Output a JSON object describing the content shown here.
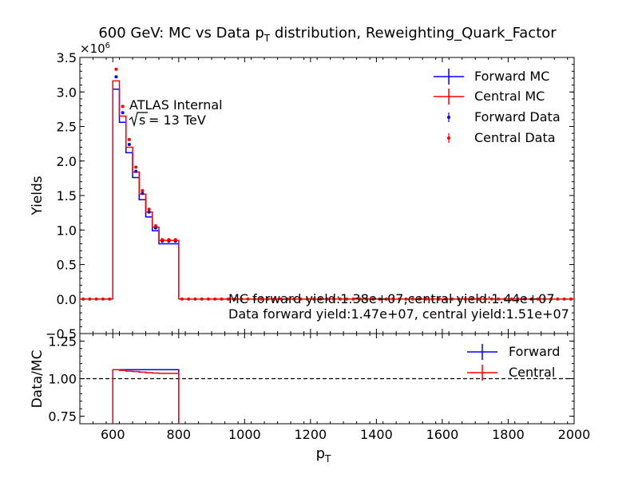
{
  "chart_data": [
    {
      "type": "line",
      "panel": "main",
      "title_main": "600 GeV: MC vs Data p",
      "title_sub": "T",
      "title_rest": " distribution, Reweighting_Quark_Factor",
      "ylabel": "Yields",
      "scale_label": "×10",
      "scale_exp": "6",
      "xlim": [
        500,
        2000
      ],
      "ylim": [
        -0.5,
        3.5
      ],
      "y_ticks": [
        -0.5,
        0.0,
        0.5,
        1.0,
        1.5,
        2.0,
        2.5,
        3.0,
        3.5
      ],
      "y_tick_labels": [
        "−0.5",
        "0.0",
        "0.5",
        "1.0",
        "1.5",
        "2.0",
        "2.5",
        "3.0",
        "3.5"
      ],
      "annotations": {
        "atlas": "ATLAS Internal",
        "sqrt_s": "s",
        "energy": " =  13 TeV",
        "mc_yield": "MC forward yield:1.38e+07,central yield:1.44e+07",
        "data_yield": "Data forward yield:1.47e+07, central yield:1.51e+07"
      },
      "legend_placement": "top-right",
      "bin_edges": [
        500,
        520,
        540,
        560,
        580,
        600,
        620,
        640,
        660,
        680,
        700,
        720,
        740,
        760,
        780,
        800,
        820,
        840,
        860,
        880,
        900,
        920,
        940,
        960,
        980,
        1000,
        1020,
        1040,
        1060,
        1080,
        1100,
        1120,
        1140,
        1160,
        1180,
        1200,
        1220,
        1240,
        1260,
        1280,
        1300,
        1320,
        1340,
        1360,
        1380,
        1400,
        1420,
        1440,
        1460,
        1480,
        1500,
        1520,
        1540,
        1560,
        1580,
        1600,
        1620,
        1640,
        1660,
        1680,
        1700,
        1720,
        1740,
        1760,
        1780,
        1800,
        1820,
        1840,
        1860,
        1880,
        1900,
        1920,
        1940,
        1960,
        1980,
        2000
      ],
      "nonzero_bins": {
        "x_centers": [
          610,
          630,
          650,
          670,
          690,
          710,
          730,
          750,
          770,
          790
        ],
        "forward_mc": [
          3.04,
          2.56,
          2.12,
          1.76,
          1.44,
          1.19,
          0.99,
          0.8,
          0.0,
          0.0
        ],
        "central_mc": [
          3.16,
          2.65,
          2.2,
          1.84,
          1.52,
          1.26,
          1.04,
          0.85,
          0.0,
          0.0
        ]
      },
      "hist_edges_used": [
        600,
        620,
        640,
        660,
        680,
        700,
        720,
        740,
        760,
        780,
        800
      ],
      "forward_mc_steps": [
        3.04,
        2.56,
        2.12,
        1.76,
        1.44,
        1.19,
        0.99,
        0.8,
        0.8,
        0.8
      ],
      "central_mc_steps": [
        3.16,
        2.65,
        2.2,
        1.84,
        1.52,
        1.26,
        1.04,
        0.85,
        0.85,
        0.85
      ],
      "data_points_x": [
        610,
        630,
        650,
        670,
        690,
        710,
        730,
        750,
        770,
        790
      ],
      "forward_data": [
        3.22,
        2.7,
        2.24,
        1.85,
        1.53,
        1.26,
        1.03,
        0.84,
        0.84,
        0.84
      ],
      "central_data": [
        3.33,
        2.79,
        2.31,
        1.91,
        1.57,
        1.3,
        1.06,
        0.86,
        0.86,
        0.86
      ],
      "zero_points_x": [
        510,
        530,
        550,
        570,
        590,
        810,
        830,
        850,
        870,
        890,
        910,
        930,
        950,
        970,
        990,
        1010,
        1030,
        1050,
        1070,
        1090,
        1110,
        1130,
        1150,
        1170,
        1190,
        1210,
        1230,
        1250,
        1270,
        1290,
        1310,
        1330,
        1350,
        1370,
        1390,
        1410,
        1430,
        1450,
        1470,
        1490,
        1510,
        1530,
        1550,
        1570,
        1590,
        1610,
        1630,
        1650,
        1670,
        1690,
        1710,
        1730,
        1750,
        1770,
        1790,
        1810,
        1830,
        1850,
        1870,
        1890,
        1910,
        1930,
        1950,
        1970,
        1990
      ],
      "series": [
        {
          "name": "Forward MC",
          "color": "#0000ff"
        },
        {
          "name": "Central MC",
          "color": "#ff0000"
        },
        {
          "name": "Forward Data",
          "color": "#0000ff"
        },
        {
          "name": "Central Data",
          "color": "#ff0000"
        }
      ]
    },
    {
      "type": "line",
      "panel": "ratio",
      "ylabel": "Data/MC",
      "xlabel_main": "p",
      "xlabel_sub": "T",
      "xlim": [
        500,
        2000
      ],
      "ylim": [
        0.7,
        1.3
      ],
      "y_ticks": [
        0.75,
        1.0,
        1.25
      ],
      "y_tick_labels": [
        "0.75",
        "1.00",
        "1.25"
      ],
      "x_ticks": [
        600,
        800,
        1000,
        1200,
        1400,
        1600,
        1800,
        2000
      ],
      "x_tick_labels": [
        "600",
        "800",
        "1000",
        "1200",
        "1400",
        "1600",
        "1800",
        "2000"
      ],
      "reference_line": 1.0,
      "legend_placement": "top-right",
      "edges": [
        600,
        620,
        640,
        660,
        680,
        700,
        720,
        740,
        760,
        780,
        800
      ],
      "forward_ratio": [
        1.06,
        1.06,
        1.06,
        1.06,
        1.06,
        1.06,
        1.06,
        1.06,
        1.06,
        1.06
      ],
      "central_ratio": [
        1.06,
        1.055,
        1.05,
        1.047,
        1.043,
        1.04,
        1.037,
        1.035,
        1.035,
        1.035
      ],
      "series": [
        {
          "name": "Forward",
          "color": "#0000ff"
        },
        {
          "name": "Central",
          "color": "#ff0000"
        }
      ]
    }
  ]
}
